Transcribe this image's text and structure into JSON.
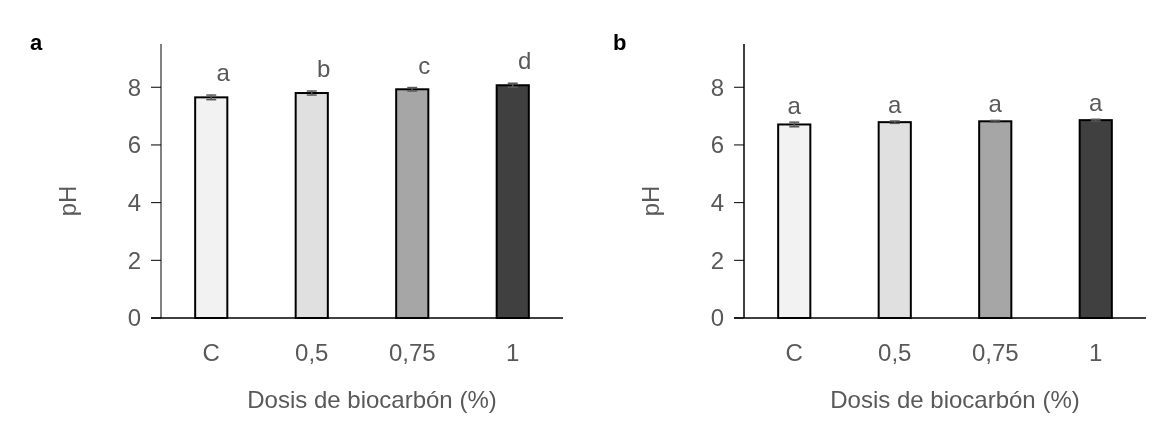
{
  "chart_data": [
    {
      "type": "bar",
      "title": "a",
      "xlabel": "Dosis de biocarbón (%)",
      "ylabel": "pH",
      "categories": [
        "C",
        "0,5",
        "0,75",
        "1"
      ],
      "values": [
        7.65,
        7.8,
        7.93,
        8.07
      ],
      "errors": [
        0.08,
        0.07,
        0.06,
        0.07
      ],
      "colors": [
        "#f2f2f2",
        "#e0e0e0",
        "#a6a6a6",
        "#404040"
      ],
      "ylim": [
        0,
        9.5
      ],
      "yticks": [
        0,
        2,
        4,
        6,
        8
      ],
      "grid": false,
      "annotations": [
        "a",
        "b",
        "c",
        "d"
      ]
    },
    {
      "type": "bar",
      "title": "b",
      "xlabel": "Dosis de biocarbón (%)",
      "ylabel": "pH",
      "categories": [
        "C",
        "0,5",
        "0,75",
        "1"
      ],
      "values": [
        6.71,
        6.79,
        6.82,
        6.86
      ],
      "errors": [
        0.08,
        0.04,
        0.03,
        0.03
      ],
      "colors": [
        "#f2f2f2",
        "#e0e0e0",
        "#a6a6a6",
        "#404040"
      ],
      "ylim": [
        0,
        9.5
      ],
      "yticks": [
        0,
        2,
        4,
        6,
        8
      ],
      "grid": false,
      "annotations": [
        "a",
        "a",
        "a",
        "a"
      ]
    }
  ]
}
